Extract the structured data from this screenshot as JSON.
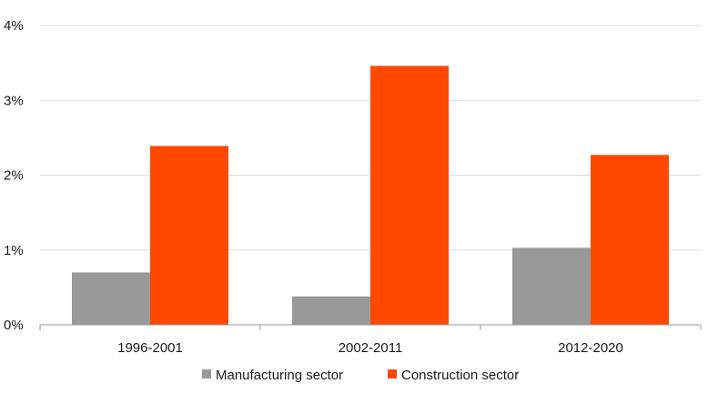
{
  "chart_data": {
    "type": "bar",
    "title": "",
    "xlabel": "",
    "ylabel": "",
    "categories": [
      "1996-2001",
      "2002-2011",
      "2012-2020"
    ],
    "series": [
      {
        "name": "Manufacturing sector",
        "color": "#999999",
        "values": [
          0.7,
          0.38,
          1.03
        ]
      },
      {
        "name": "Construction sector",
        "color": "#ff4800",
        "values": [
          2.39,
          3.46,
          2.27
        ]
      }
    ],
    "ylim": [
      0,
      4
    ],
    "yticks": [
      0,
      1,
      2,
      3,
      4
    ],
    "ytick_labels": [
      "0%",
      "1%",
      "2%",
      "3%",
      "4%"
    ],
    "grid": true,
    "legend_position": "bottom"
  }
}
